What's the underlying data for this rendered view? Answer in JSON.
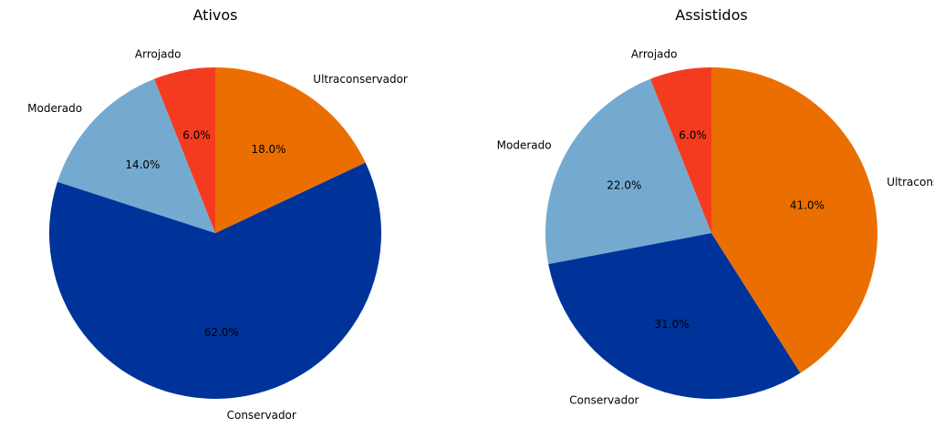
{
  "chart_data": [
    {
      "type": "pie",
      "title": "Ativos",
      "start_angle": 90,
      "direction": "counterclockwise",
      "categories": [
        "Arrojado",
        "Moderado",
        "Conservador",
        "Ultraconservador"
      ],
      "values": [
        6.0,
        14.0,
        62.0,
        18.0
      ],
      "value_labels": [
        "6.0%",
        "14.0%",
        "62.0%",
        "18.0%"
      ],
      "colors": [
        "#f43b20",
        "#74aad0",
        "#003399",
        "#eb6f00"
      ]
    },
    {
      "type": "pie",
      "title": "Assistidos",
      "start_angle": 90,
      "direction": "counterclockwise",
      "categories": [
        "Arrojado",
        "Moderado",
        "Conservador",
        "Ultraconservador"
      ],
      "values": [
        6.0,
        22.0,
        31.0,
        41.0
      ],
      "value_labels": [
        "6.0%",
        "22.0%",
        "31.0%",
        "41.0%"
      ],
      "colors": [
        "#f43b20",
        "#74aad0",
        "#003399",
        "#eb6f00"
      ]
    }
  ]
}
